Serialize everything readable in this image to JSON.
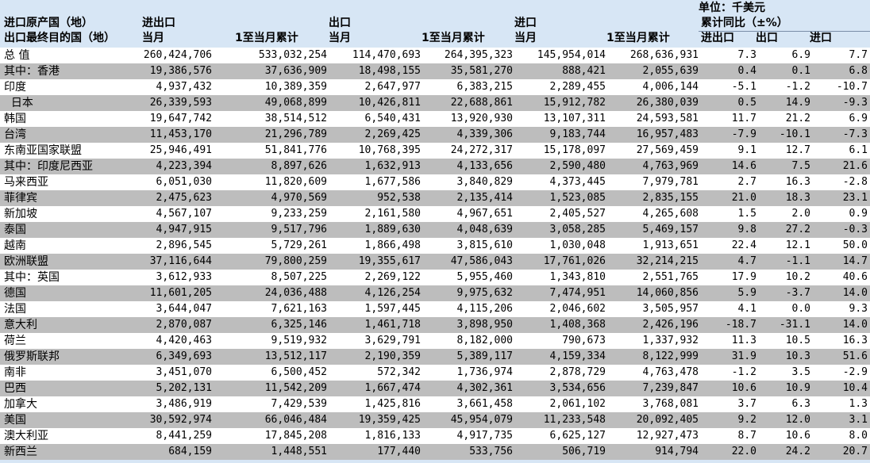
{
  "unit_label": "单位：千美元",
  "headers": {
    "country_line1": "进口原产国（地）",
    "country_line2": "出口最终目的国（地）",
    "total_group": "进出口",
    "export_group": "出口",
    "import_group": "进口",
    "yoy_group": "累计同比（±%）",
    "month": "当月",
    "cumulative": "1至当月累计",
    "yoy_total": "进出口",
    "yoy_export": "出口",
    "yoy_import": "进口"
  },
  "rows": [
    {
      "name": "总 值",
      "c1": "260,424,706",
      "c2": "533,032,254",
      "c3": "114,470,693",
      "c4": "264,395,323",
      "c5": "145,954,014",
      "c6": "268,636,931",
      "c7": "7.3",
      "c8": "6.9",
      "c9": "7.7"
    },
    {
      "name": "其中：香港",
      "c1": "19,386,576",
      "c2": "37,636,909",
      "c3": "18,498,155",
      "c4": "35,581,270",
      "c5": "888,421",
      "c6": "2,055,639",
      "c7": "0.4",
      "c8": "0.1",
      "c9": "6.8"
    },
    {
      "name": "印度",
      "c1": "4,937,432",
      "c2": "10,389,359",
      "c3": "2,647,977",
      "c4": "6,383,215",
      "c5": "2,289,455",
      "c6": "4,006,144",
      "c7": "-5.1",
      "c8": "-1.2",
      "c9": "-10.7"
    },
    {
      "name": "  日本",
      "c1": "26,339,593",
      "c2": "49,068,899",
      "c3": "10,426,811",
      "c4": "22,688,861",
      "c5": "15,912,782",
      "c6": "26,380,039",
      "c7": "0.5",
      "c8": "14.9",
      "c9": "-9.3"
    },
    {
      "name": "韩国",
      "c1": "19,647,742",
      "c2": "38,514,512",
      "c3": "6,540,431",
      "c4": "13,920,930",
      "c5": "13,107,311",
      "c6": "24,593,581",
      "c7": "11.7",
      "c8": "21.2",
      "c9": "6.9"
    },
    {
      "name": "台湾",
      "c1": "11,453,170",
      "c2": "21,296,789",
      "c3": "2,269,425",
      "c4": "4,339,306",
      "c5": "9,183,744",
      "c6": "16,957,483",
      "c7": "-7.9",
      "c8": "-10.1",
      "c9": "-7.3"
    },
    {
      "name": "东南亚国家联盟",
      "c1": "25,946,491",
      "c2": "51,841,776",
      "c3": "10,768,395",
      "c4": "24,272,317",
      "c5": "15,178,097",
      "c6": "27,569,459",
      "c7": "9.1",
      "c8": "12.7",
      "c9": "6.1"
    },
    {
      "name": "其中：印度尼西亚",
      "c1": "4,223,394",
      "c2": "8,897,626",
      "c3": "1,632,913",
      "c4": "4,133,656",
      "c5": "2,590,480",
      "c6": "4,763,969",
      "c7": "14.6",
      "c8": "7.5",
      "c9": "21.6"
    },
    {
      "name": "马来西亚",
      "c1": "6,051,030",
      "c2": "11,820,609",
      "c3": "1,677,586",
      "c4": "3,840,829",
      "c5": "4,373,445",
      "c6": "7,979,781",
      "c7": "2.7",
      "c8": "16.3",
      "c9": "-2.8"
    },
    {
      "name": "菲律宾",
      "c1": "2,475,623",
      "c2": "4,970,569",
      "c3": "952,538",
      "c4": "2,135,414",
      "c5": "1,523,085",
      "c6": "2,835,155",
      "c7": "21.0",
      "c8": "18.3",
      "c9": "23.1"
    },
    {
      "name": "新加坡",
      "c1": "4,567,107",
      "c2": "9,233,259",
      "c3": "2,161,580",
      "c4": "4,967,651",
      "c5": "2,405,527",
      "c6": "4,265,608",
      "c7": "1.5",
      "c8": "2.0",
      "c9": "0.9"
    },
    {
      "name": "泰国",
      "c1": "4,947,915",
      "c2": "9,517,796",
      "c3": "1,889,630",
      "c4": "4,048,639",
      "c5": "3,058,285",
      "c6": "5,469,157",
      "c7": "9.8",
      "c8": "27.2",
      "c9": "-0.3"
    },
    {
      "name": "越南",
      "c1": "2,896,545",
      "c2": "5,729,261",
      "c3": "1,866,498",
      "c4": "3,815,610",
      "c5": "1,030,048",
      "c6": "1,913,651",
      "c7": "22.4",
      "c8": "12.1",
      "c9": "50.0"
    },
    {
      "name": "欧洲联盟",
      "c1": "37,116,644",
      "c2": "79,800,259",
      "c3": "19,355,617",
      "c4": "47,586,043",
      "c5": "17,761,026",
      "c6": "32,214,215",
      "c7": "4.7",
      "c8": "-1.1",
      "c9": "14.7"
    },
    {
      "name": "其中：英国",
      "c1": "3,612,933",
      "c2": "8,507,225",
      "c3": "2,269,122",
      "c4": "5,955,460",
      "c5": "1,343,810",
      "c6": "2,551,765",
      "c7": "17.9",
      "c8": "10.2",
      "c9": "40.6"
    },
    {
      "name": "德国",
      "c1": "11,601,205",
      "c2": "24,036,488",
      "c3": "4,126,254",
      "c4": "9,975,632",
      "c5": "7,474,951",
      "c6": "14,060,856",
      "c7": "5.9",
      "c8": "-3.7",
      "c9": "14.0"
    },
    {
      "name": "法国",
      "c1": "3,644,047",
      "c2": "7,621,163",
      "c3": "1,597,445",
      "c4": "4,115,206",
      "c5": "2,046,602",
      "c6": "3,505,957",
      "c7": "4.1",
      "c8": "0.0",
      "c9": "9.3"
    },
    {
      "name": "意大利",
      "c1": "2,870,087",
      "c2": "6,325,146",
      "c3": "1,461,718",
      "c4": "3,898,950",
      "c5": "1,408,368",
      "c6": "2,426,196",
      "c7": "-18.7",
      "c8": "-31.1",
      "c9": "14.0"
    },
    {
      "name": "荷兰",
      "c1": "4,420,463",
      "c2": "9,519,932",
      "c3": "3,629,791",
      "c4": "8,182,000",
      "c5": "790,673",
      "c6": "1,337,932",
      "c7": "11.3",
      "c8": "10.5",
      "c9": "16.3"
    },
    {
      "name": "俄罗斯联邦",
      "c1": "6,349,693",
      "c2": "13,512,117",
      "c3": "2,190,359",
      "c4": "5,389,117",
      "c5": "4,159,334",
      "c6": "8,122,999",
      "c7": "31.9",
      "c8": "10.3",
      "c9": "51.6"
    },
    {
      "name": "南非",
      "c1": "3,451,070",
      "c2": "6,500,452",
      "c3": "572,342",
      "c4": "1,736,974",
      "c5": "2,878,729",
      "c6": "4,763,478",
      "c7": "-1.2",
      "c8": "3.5",
      "c9": "-2.9"
    },
    {
      "name": "巴西",
      "c1": "5,202,131",
      "c2": "11,542,209",
      "c3": "1,667,474",
      "c4": "4,302,361",
      "c5": "3,534,656",
      "c6": "7,239,847",
      "c7": "10.6",
      "c8": "10.9",
      "c9": "10.4"
    },
    {
      "name": "加拿大",
      "c1": "3,486,919",
      "c2": "7,429,539",
      "c3": "1,425,816",
      "c4": "3,661,458",
      "c5": "2,061,102",
      "c6": "3,768,081",
      "c7": "3.7",
      "c8": "6.3",
      "c9": "1.3"
    },
    {
      "name": "美国",
      "c1": "30,592,974",
      "c2": "66,046,484",
      "c3": "19,359,425",
      "c4": "45,954,079",
      "c5": "11,233,548",
      "c6": "20,092,405",
      "c7": "9.2",
      "c8": "12.0",
      "c9": "3.1"
    },
    {
      "name": "澳大利亚",
      "c1": "8,441,259",
      "c2": "17,845,208",
      "c3": "1,816,133",
      "c4": "4,917,735",
      "c5": "6,625,127",
      "c6": "12,927,473",
      "c7": "8.7",
      "c8": "10.6",
      "c9": "8.0"
    },
    {
      "name": "新西兰",
      "c1": "684,159",
      "c2": "1,448,551",
      "c3": "177,440",
      "c4": "533,756",
      "c5": "506,719",
      "c6": "914,794",
      "c7": "22.0",
      "c8": "24.2",
      "c9": "20.7"
    }
  ]
}
